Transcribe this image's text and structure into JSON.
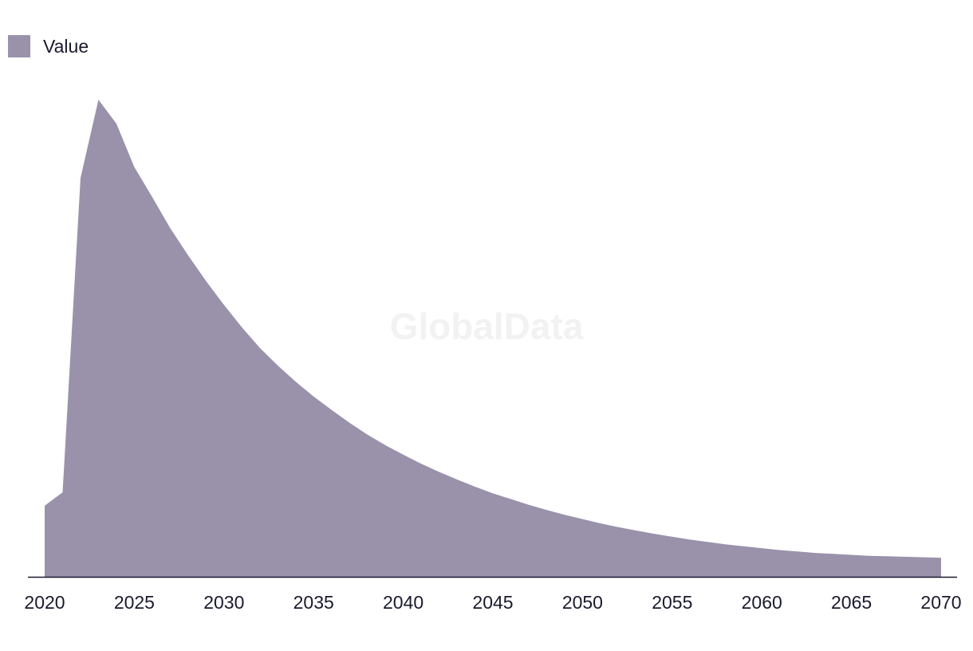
{
  "watermark": "GlobalData",
  "colors": {
    "area": "#9a92ab",
    "axis": "#1a1a2e"
  },
  "chart_data": {
    "type": "area",
    "title": "",
    "xlabel": "",
    "ylabel": "",
    "xlim": [
      2020,
      2070
    ],
    "ylim": [
      0,
      100
    ],
    "grid": false,
    "legend_position": "top-left",
    "x_ticks": [
      2020,
      2025,
      2030,
      2035,
      2040,
      2045,
      2050,
      2055,
      2060,
      2065,
      2070
    ],
    "x_tick_labels": [
      "2020",
      "2025",
      "2030",
      "2035",
      "2040",
      "2045",
      "2050",
      "2055",
      "2060",
      "2065",
      "2070"
    ],
    "series": [
      {
        "name": "Value",
        "x": [
          2020,
          2021,
          2022,
          2023,
          2024,
          2025,
          2026,
          2027,
          2028,
          2029,
          2030,
          2031,
          2032,
          2033,
          2034,
          2035,
          2036,
          2037,
          2038,
          2039,
          2040,
          2041,
          2042,
          2043,
          2044,
          2045,
          2046,
          2047,
          2048,
          2049,
          2050,
          2051,
          2052,
          2053,
          2054,
          2055,
          2056,
          2057,
          2058,
          2059,
          2060,
          2061,
          2062,
          2063,
          2064,
          2065,
          2066,
          2067,
          2068,
          2069,
          2070
        ],
        "values": [
          14.9,
          17.7,
          83.6,
          100.0,
          95.0,
          85.9,
          79.6,
          73.1,
          67.4,
          62.0,
          57.0,
          52.3,
          48.0,
          44.3,
          40.9,
          37.8,
          35.0,
          32.3,
          29.8,
          27.6,
          25.6,
          23.7,
          22.0,
          20.4,
          18.9,
          17.5,
          16.3,
          15.1,
          14.0,
          13.0,
          12.1,
          11.2,
          10.4,
          9.7,
          9.0,
          8.4,
          7.8,
          7.3,
          6.8,
          6.4,
          6.0,
          5.6,
          5.3,
          5.0,
          4.8,
          4.6,
          4.4,
          4.3,
          4.2,
          4.1,
          4.0
        ]
      }
    ]
  }
}
